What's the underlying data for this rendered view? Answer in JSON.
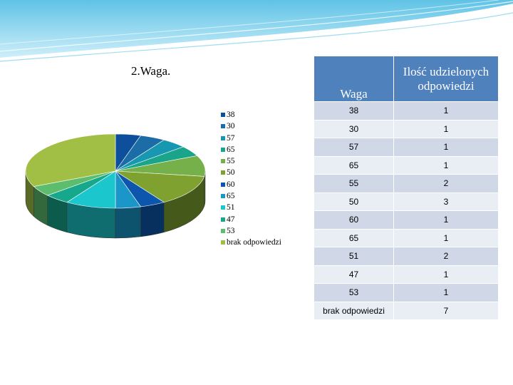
{
  "title": "2.Waga.",
  "table": {
    "headers": [
      "Waga",
      "Ilość udzielonych odpowiedzi"
    ],
    "rows": [
      [
        "38",
        "1"
      ],
      [
        "30",
        "1"
      ],
      [
        "57",
        "1"
      ],
      [
        "65",
        "1"
      ],
      [
        "55",
        "2"
      ],
      [
        "50",
        "3"
      ],
      [
        "60",
        "1"
      ],
      [
        "65",
        "1"
      ],
      [
        "51",
        "2"
      ],
      [
        "47",
        "1"
      ],
      [
        "53",
        "1"
      ],
      [
        "brak odpowiedzi",
        "7"
      ]
    ]
  },
  "chart_data": {
    "type": "pie",
    "title": "",
    "categories": [
      "38",
      "30",
      "57",
      "65",
      "55",
      "50",
      "60",
      "65",
      "51",
      "47",
      "53",
      "brak odpowiedzi"
    ],
    "values": [
      1,
      1,
      1,
      1,
      2,
      3,
      1,
      1,
      2,
      1,
      1,
      7
    ],
    "colors": [
      "#0d4f9a",
      "#1c6ca8",
      "#1898b0",
      "#1aa48a",
      "#76b04a",
      "#7ea12f",
      "#0c57ad",
      "#1a96c8",
      "#1bc6cc",
      "#16a78c",
      "#5cbd6f",
      "#a2bf45"
    ],
    "legend_position": "right"
  }
}
